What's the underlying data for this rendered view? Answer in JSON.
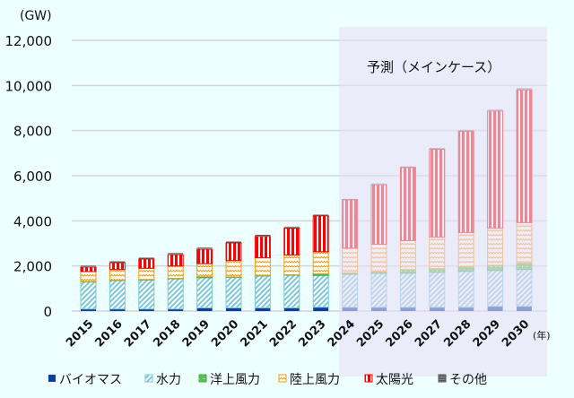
{
  "chart_data": {
    "type": "bar",
    "stacked": true,
    "ylabel": "(GW)",
    "xlabel": "(年)",
    "ylim": [
      0,
      12000
    ],
    "yticks": [
      "0",
      "2,000",
      "4,000",
      "6,000",
      "8,000",
      "10,000",
      "12,000"
    ],
    "ytick_values": [
      0,
      2000,
      4000,
      6000,
      8000,
      10000,
      12000
    ],
    "grid": true,
    "legend_position": "bottom",
    "annotation": "予測（メインケース）",
    "forecast_start": "2024",
    "categories": [
      "2015",
      "2016",
      "2017",
      "2018",
      "2019",
      "2020",
      "2021",
      "2022",
      "2023",
      "2024",
      "2025",
      "2026",
      "2027",
      "2028",
      "2029",
      "2030"
    ],
    "series": [
      {
        "name": "バイオマス",
        "color": "#0a3fa0",
        "pattern": "solid",
        "values": [
          90,
          90,
          90,
          90,
          140,
          140,
          140,
          140,
          170,
          170,
          170,
          170,
          170,
          170,
          210,
          210
        ]
      },
      {
        "name": "水力",
        "color": "#7cc8d8",
        "pattern": "diagonal",
        "values": [
          1210,
          1270,
          1295,
          1350,
          1340,
          1360,
          1420,
          1460,
          1410,
          1460,
          1500,
          1510,
          1550,
          1590,
          1590,
          1630
        ]
      },
      {
        "name": "洋上風力",
        "color": "#3cb043",
        "pattern": "dotted",
        "values": [
          10,
          15,
          10,
          10,
          40,
          10,
          20,
          10,
          70,
          60,
          60,
          160,
          160,
          200,
          230,
          280
        ]
      },
      {
        "name": "陸上風力",
        "color": "#f39c12",
        "pattern": "wave",
        "values": [
          440,
          465,
          500,
          550,
          580,
          730,
          780,
          870,
          980,
          1100,
          1230,
          1280,
          1400,
          1520,
          1650,
          1800
        ]
      },
      {
        "name": "太陽光",
        "color": "#ff0000",
        "pattern": "vertical",
        "values": [
          200,
          300,
          410,
          500,
          640,
          780,
          950,
          1190,
          1590,
          2140,
          2640,
          3240,
          3890,
          4490,
          5190,
          5880
        ]
      },
      {
        "name": "その他",
        "color": "#555555",
        "pattern": "horizontal",
        "values": [
          60,
          70,
          70,
          70,
          70,
          70,
          70,
          70,
          60,
          40,
          50,
          50,
          60,
          60,
          50,
          70
        ]
      }
    ]
  }
}
